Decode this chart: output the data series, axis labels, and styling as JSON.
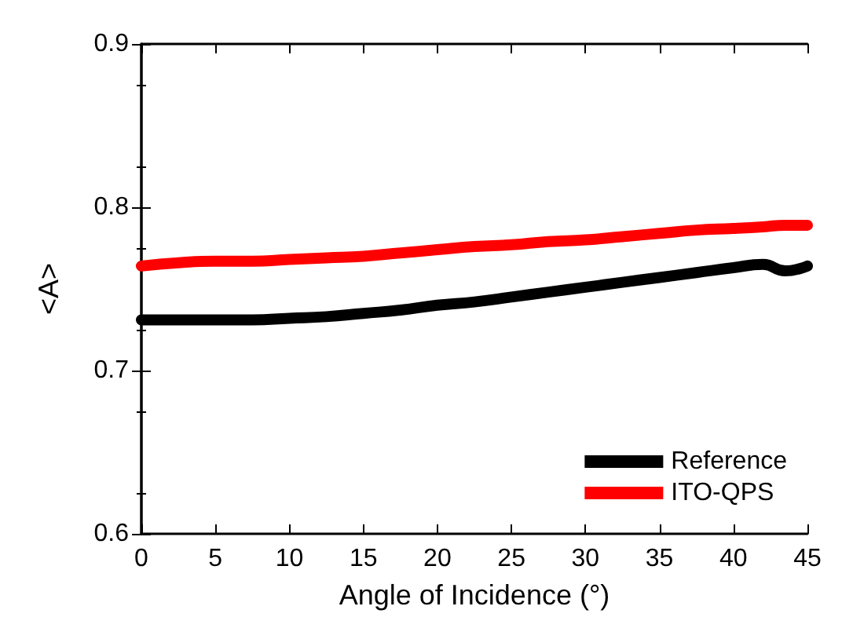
{
  "chart_data": {
    "type": "line",
    "xlabel": "Angle of Incidence (°)",
    "ylabel": "<A>",
    "xlim": [
      0,
      45
    ],
    "xticks": [
      0,
      5,
      10,
      15,
      20,
      25,
      30,
      35,
      40,
      45
    ],
    "ylim": [
      0.6,
      0.9
    ],
    "yticks": [
      0.6,
      0.7,
      0.8,
      0.9
    ],
    "x": [
      0,
      2.5,
      5,
      7.5,
      10,
      12.5,
      15,
      17.5,
      20,
      22.5,
      25,
      27.5,
      30,
      32.5,
      35,
      37.5,
      40,
      42,
      43.5,
      45
    ],
    "series": [
      {
        "name": "Reference",
        "color": "#000000",
        "values": [
          0.731,
          0.731,
          0.731,
          0.731,
          0.732,
          0.733,
          0.735,
          0.737,
          0.74,
          0.742,
          0.745,
          0.748,
          0.751,
          0.754,
          0.757,
          0.76,
          0.763,
          0.765,
          0.761,
          0.764
        ]
      },
      {
        "name": "ITO-QPS",
        "color": "#ff0000",
        "values": [
          0.764,
          0.766,
          0.767,
          0.767,
          0.768,
          0.769,
          0.77,
          0.772,
          0.774,
          0.776,
          0.777,
          0.779,
          0.78,
          0.782,
          0.784,
          0.786,
          0.787,
          0.788,
          0.789,
          0.789
        ]
      }
    ],
    "legend": "bottom right",
    "grid": false,
    "line_style": "solid"
  }
}
